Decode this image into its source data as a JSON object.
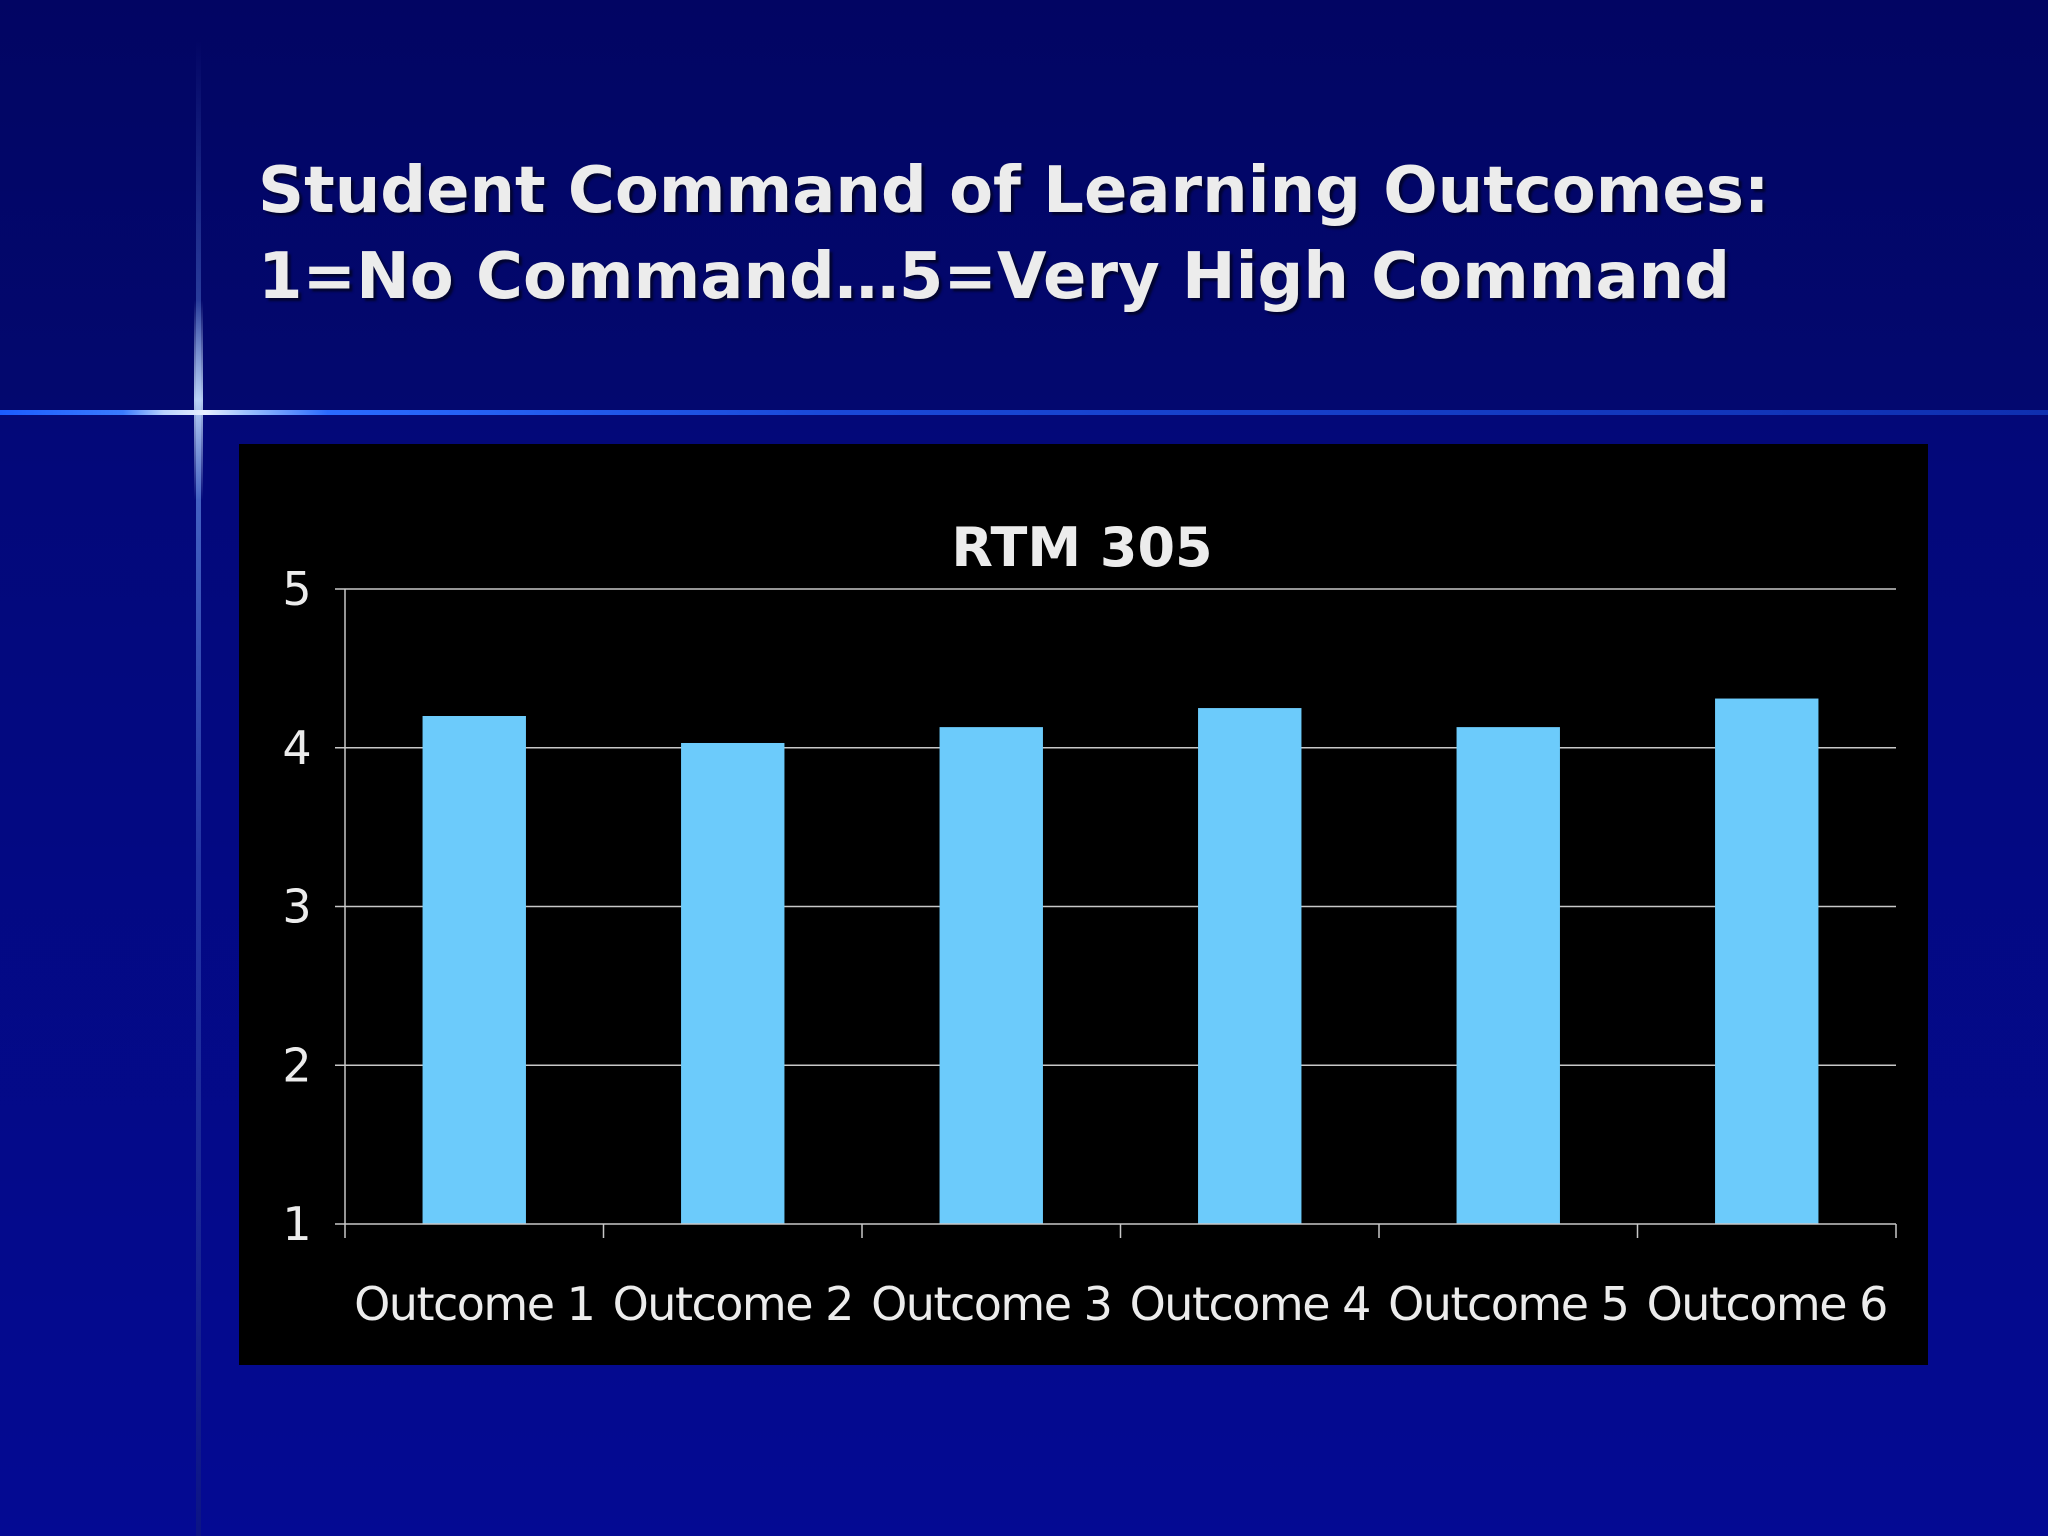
{
  "slide": {
    "title_line1": "Student Command of Learning Outcomes:",
    "title_line2": "1=No Command…5=Very High Command"
  },
  "colors": {
    "background": "#03097f",
    "chart_background": "#000000",
    "bar": "#6ccbfb",
    "text": "#ececec",
    "grid": "#c8c8c8"
  },
  "chart_data": {
    "type": "bar",
    "title": "RTM 305",
    "categories": [
      "Outcome 1",
      "Outcome 2",
      "Outcome 3",
      "Outcome 4",
      "Outcome 5",
      "Outcome 6"
    ],
    "values": [
      4.2,
      4.03,
      4.13,
      4.25,
      4.13,
      4.31
    ],
    "ylim": [
      1,
      5
    ],
    "yticks": [
      1,
      2,
      3,
      4,
      5
    ],
    "xlabel": "",
    "ylabel": "",
    "grid": true,
    "legend": "none"
  }
}
